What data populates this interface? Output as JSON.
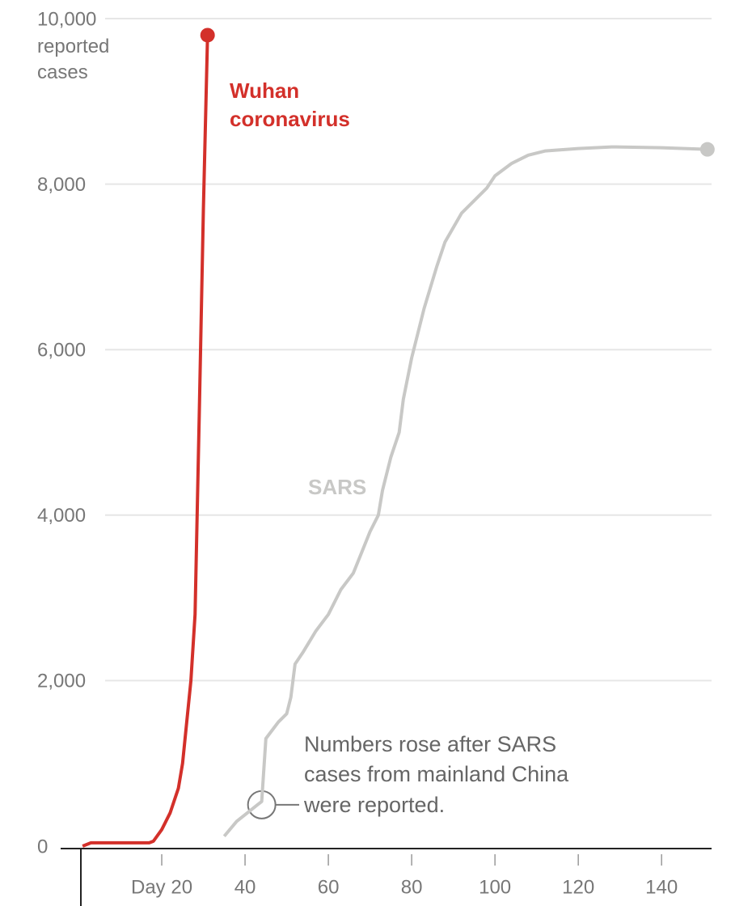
{
  "chart_data": {
    "type": "line",
    "y_label": "reported cases",
    "xlim": [
      0,
      152
    ],
    "ylim": [
      0,
      10000
    ],
    "xticks": [
      {
        "value": 20,
        "label": "Day 20"
      },
      40,
      60,
      80,
      100,
      120,
      140
    ],
    "yticks": [
      0,
      {
        "value": 2000,
        "label": "2,000"
      },
      {
        "value": 4000,
        "label": "4,000"
      },
      {
        "value": 6000,
        "label": "6,000"
      },
      {
        "value": 8000,
        "label": "8,000"
      },
      {
        "value": 10000,
        "label": "10,000"
      }
    ],
    "grid": true,
    "series": [
      {
        "name": "Wuhan coronavirus",
        "color": "#d3302a",
        "x": [
          1,
          3,
          5,
          10,
          17,
          18,
          20,
          22,
          24,
          25,
          26,
          27,
          28,
          29,
          30,
          31
        ],
        "values": [
          0,
          40,
          40,
          40,
          40,
          60,
          200,
          400,
          700,
          1000,
          1500,
          2000,
          2800,
          5200,
          7700,
          9800
        ]
      },
      {
        "name": "SARS",
        "color": "#c8c8c6",
        "x": [
          35,
          38,
          41,
          43,
          44,
          45,
          48,
          50,
          51,
          52,
          54,
          57,
          60,
          63,
          66,
          68,
          70,
          72,
          73,
          75,
          77,
          78,
          80,
          83,
          86,
          88,
          92,
          95,
          98,
          100,
          104,
          108,
          112,
          120,
          128,
          140,
          151
        ],
        "values": [
          120,
          300,
          420,
          500,
          540,
          1300,
          1500,
          1600,
          1800,
          2200,
          2350,
          2600,
          2800,
          3100,
          3300,
          3550,
          3800,
          4000,
          4300,
          4700,
          5000,
          5400,
          5900,
          6500,
          7000,
          7300,
          7650,
          7800,
          7950,
          8100,
          8250,
          8350,
          8400,
          8430,
          8450,
          8440,
          8420
        ]
      }
    ],
    "annotation": "Numbers rose after SARS cases from mainland China were reported."
  }
}
